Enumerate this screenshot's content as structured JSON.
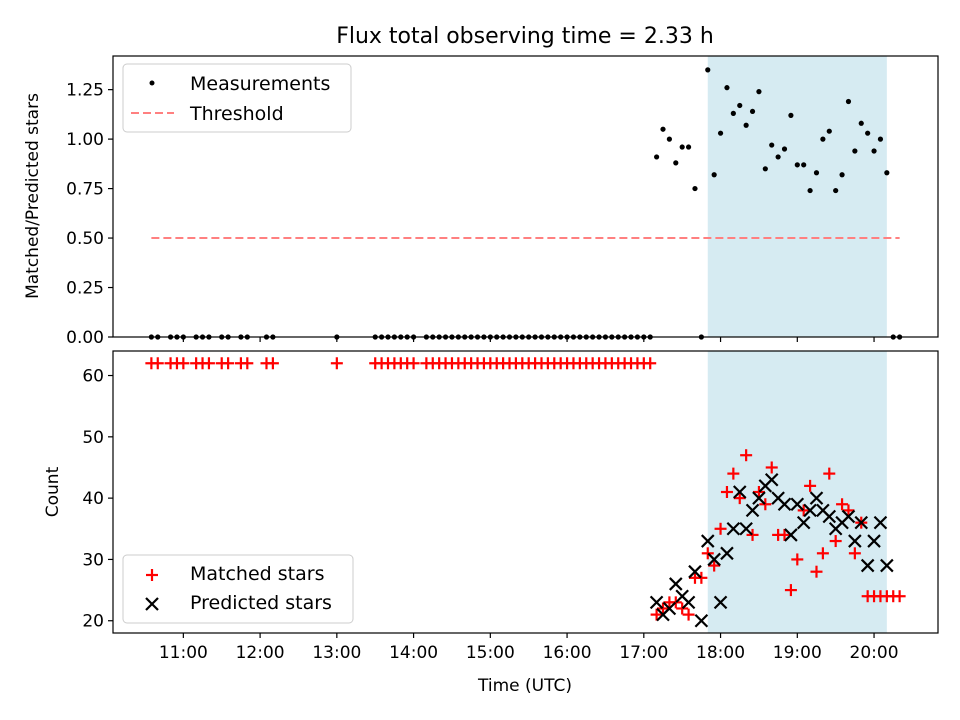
{
  "title": "Flux total observing time = 2.33 h",
  "colors": {
    "measurement": "#000000",
    "threshold": "#ff8080",
    "matched": "#ff0000",
    "predicted": "#000000",
    "shade": "#add8e6"
  },
  "chart_data": [
    {
      "type": "scatter",
      "panel": "top",
      "ylabel": "Matched/Predicted stars",
      "ylim": [
        0,
        1.42
      ],
      "yticks": [
        0,
        0.25,
        0.5,
        0.75,
        1.0,
        1.25
      ],
      "ytick_labels": [
        "0.00",
        "0.25",
        "0.50",
        "0.75",
        "1.00",
        "1.25"
      ],
      "xlim": [
        "10:05",
        "20:50"
      ],
      "legend": {
        "placement": "upper-left",
        "entries": [
          "Measurements",
          "Threshold"
        ]
      },
      "shaded_interval": [
        "17:50",
        "20:10"
      ],
      "threshold": {
        "name": "Threshold",
        "value": 0.5,
        "x_range": [
          "10:35",
          "20:20"
        ]
      },
      "series": [
        {
          "name": "Measurements",
          "x": [
            "10:35",
            "10:40",
            "10:50",
            "10:55",
            "11:00",
            "11:10",
            "11:15",
            "11:20",
            "11:30",
            "11:35",
            "11:45",
            "11:50",
            "12:05",
            "12:10",
            "13:00",
            "13:30",
            "13:35",
            "13:40",
            "13:45",
            "13:50",
            "13:55",
            "14:00",
            "14:10",
            "14:15",
            "14:20",
            "14:25",
            "14:30",
            "14:35",
            "14:40",
            "14:45",
            "14:50",
            "14:55",
            "15:00",
            "15:05",
            "15:10",
            "15:15",
            "15:20",
            "15:25",
            "15:30",
            "15:35",
            "15:40",
            "15:45",
            "15:50",
            "15:55",
            "16:00",
            "16:05",
            "16:10",
            "16:15",
            "16:20",
            "16:25",
            "16:30",
            "16:35",
            "16:40",
            "16:45",
            "16:50",
            "16:55",
            "17:00",
            "17:05",
            "17:10",
            "17:15",
            "17:20",
            "17:25",
            "17:30",
            "17:35",
            "17:40",
            "17:45",
            "17:50",
            "17:55",
            "18:00",
            "18:05",
            "18:10",
            "18:15",
            "18:20",
            "18:25",
            "18:30",
            "18:35",
            "18:40",
            "18:45",
            "18:50",
            "18:55",
            "19:00",
            "19:05",
            "19:10",
            "19:15",
            "19:20",
            "19:25",
            "19:30",
            "19:35",
            "19:40",
            "19:45",
            "19:50",
            "19:55",
            "20:00",
            "20:05",
            "20:10",
            "20:15",
            "20:20"
          ],
          "y": [
            0,
            0,
            0,
            0,
            0,
            0,
            0,
            0,
            0,
            0,
            0,
            0,
            0,
            0,
            0,
            0,
            0,
            0,
            0,
            0,
            0,
            0,
            0,
            0,
            0,
            0,
            0,
            0,
            0,
            0,
            0,
            0,
            0,
            0,
            0,
            0,
            0,
            0,
            0,
            0,
            0,
            0,
            0,
            0,
            0,
            0,
            0,
            0,
            0,
            0,
            0,
            0,
            0,
            0,
            0,
            0,
            0,
            0,
            0.91,
            1.05,
            1.0,
            0.88,
            0.96,
            0.96,
            0.75,
            0.0,
            1.35,
            0.82,
            1.03,
            1.26,
            1.13,
            1.17,
            1.07,
            1.14,
            1.24,
            0.85,
            0.97,
            0.91,
            0.95,
            1.12,
            0.87,
            0.87,
            0.74,
            0.83,
            1.0,
            1.04,
            0.74,
            0.82,
            1.19,
            0.94,
            1.08,
            1.03,
            0.94,
            1.0,
            0.83,
            0,
            0
          ]
        }
      ]
    },
    {
      "type": "scatter",
      "panel": "bottom",
      "xlabel": "Time (UTC)",
      "ylabel": "Count",
      "ylim": [
        18,
        64
      ],
      "yticks": [
        20,
        30,
        40,
        50,
        60
      ],
      "ytick_labels": [
        "20",
        "30",
        "40",
        "50",
        "60"
      ],
      "xlim": [
        "10:05",
        "20:50"
      ],
      "xticks": [
        "11:00",
        "12:00",
        "13:00",
        "14:00",
        "15:00",
        "16:00",
        "17:00",
        "18:00",
        "19:00",
        "20:00"
      ],
      "legend": {
        "placement": "lower-left",
        "entries": [
          "Matched stars",
          "Predicted stars"
        ]
      },
      "shaded_interval": [
        "17:50",
        "20:10"
      ],
      "series": [
        {
          "name": "Matched stars",
          "marker": "plus",
          "x": [
            "10:35",
            "10:40",
            "10:50",
            "10:55",
            "11:00",
            "11:10",
            "11:15",
            "11:20",
            "11:30",
            "11:35",
            "11:45",
            "11:50",
            "12:05",
            "12:10",
            "13:00",
            "13:30",
            "13:35",
            "13:40",
            "13:45",
            "13:50",
            "13:55",
            "14:00",
            "14:10",
            "14:15",
            "14:20",
            "14:25",
            "14:30",
            "14:35",
            "14:40",
            "14:45",
            "14:50",
            "14:55",
            "15:00",
            "15:05",
            "15:10",
            "15:15",
            "15:20",
            "15:25",
            "15:30",
            "15:35",
            "15:40",
            "15:45",
            "15:50",
            "15:55",
            "16:00",
            "16:05",
            "16:10",
            "16:15",
            "16:20",
            "16:25",
            "16:30",
            "16:35",
            "16:40",
            "16:45",
            "16:50",
            "16:55",
            "17:00",
            "17:05",
            "17:10",
            "17:15",
            "17:20",
            "17:25",
            "17:30",
            "17:35",
            "17:40",
            "17:45",
            "17:50",
            "17:55",
            "18:00",
            "18:05",
            "18:10",
            "18:15",
            "18:20",
            "18:25",
            "18:30",
            "18:35",
            "18:40",
            "18:45",
            "18:50",
            "18:55",
            "19:00",
            "19:05",
            "19:10",
            "19:15",
            "19:20",
            "19:25",
            "19:30",
            "19:35",
            "19:40",
            "19:45",
            "19:50",
            "19:55",
            "20:00",
            "20:05",
            "20:10",
            "20:15",
            "20:20"
          ],
          "y": [
            62,
            62,
            62,
            62,
            62,
            62,
            62,
            62,
            62,
            62,
            62,
            62,
            62,
            62,
            62,
            62,
            62,
            62,
            62,
            62,
            62,
            62,
            62,
            62,
            62,
            62,
            62,
            62,
            62,
            62,
            62,
            62,
            62,
            62,
            62,
            62,
            62,
            62,
            62,
            62,
            62,
            62,
            62,
            62,
            62,
            62,
            62,
            62,
            62,
            62,
            62,
            62,
            62,
            62,
            62,
            62,
            62,
            62,
            21,
            22,
            23,
            23,
            22,
            21,
            27,
            27,
            31,
            29,
            35,
            41,
            44,
            40,
            47,
            34,
            41,
            39,
            45,
            34,
            34,
            25,
            30,
            38,
            42,
            28,
            31,
            44,
            33,
            39,
            38,
            31,
            36,
            24,
            24,
            24,
            24,
            24,
            24
          ]
        },
        {
          "name": "Predicted stars",
          "marker": "x",
          "x": [
            "17:10",
            "17:15",
            "17:20",
            "17:25",
            "17:30",
            "17:35",
            "17:40",
            "17:45",
            "17:50",
            "17:55",
            "18:00",
            "18:05",
            "18:10",
            "18:15",
            "18:20",
            "18:25",
            "18:30",
            "18:35",
            "18:40",
            "18:45",
            "18:50",
            "18:55",
            "19:00",
            "19:05",
            "19:10",
            "19:15",
            "19:20",
            "19:25",
            "19:30",
            "19:35",
            "19:40",
            "19:45",
            "19:50",
            "19:55",
            "20:00",
            "20:05",
            "20:10"
          ],
          "y": [
            23,
            21,
            22,
            26,
            24,
            23,
            28,
            20,
            33,
            30,
            23,
            31,
            35,
            41,
            35,
            38,
            40,
            42,
            43,
            40,
            39,
            34,
            39,
            36,
            38,
            40,
            38,
            37,
            35,
            36,
            37,
            33,
            36,
            29,
            33,
            36,
            29
          ]
        }
      ]
    }
  ]
}
